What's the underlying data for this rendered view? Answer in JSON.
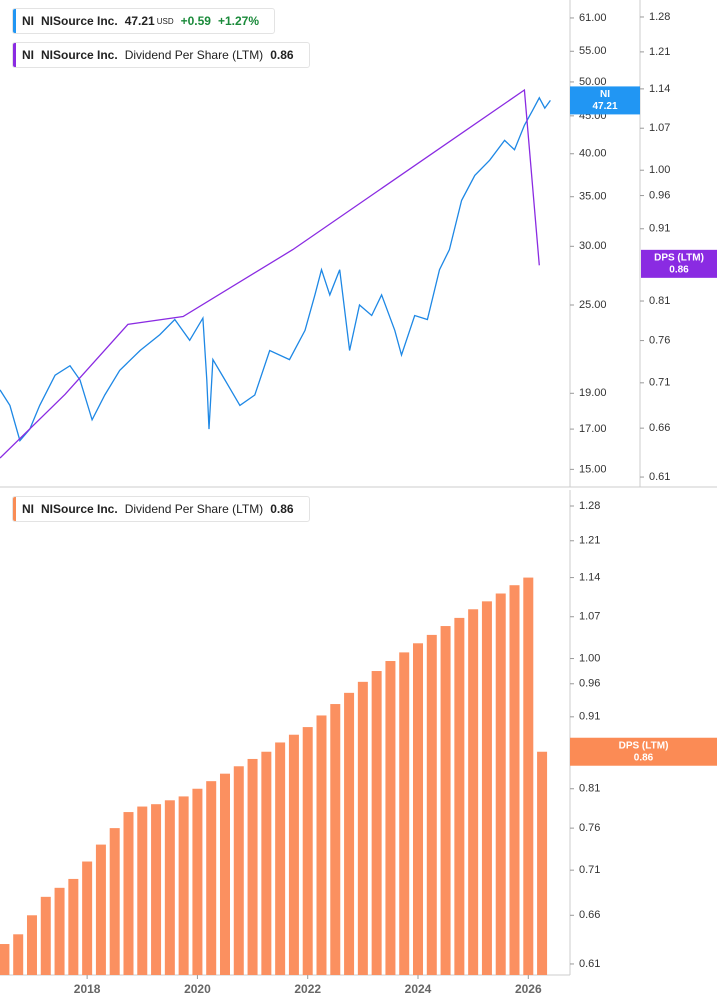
{
  "chart_data": [
    {
      "type": "line",
      "log_scale": true,
      "headers": [
        {
          "symbol": "NI",
          "name": "NISource Inc.",
          "price": 47.21,
          "currency": "USD",
          "change": "+0.59",
          "change_percent": "+1.27%",
          "color": "#2196f3"
        },
        {
          "symbol": "NI",
          "name": "NISource Inc.",
          "metric": "Dividend Per Share (LTM)",
          "value": 0.86,
          "color": "#8a2be2"
        }
      ],
      "xlim": [
        2016.42,
        2026.72
      ],
      "ylim": [
        14.2,
        64.5
      ],
      "yticks": [
        {
          "value": 61,
          "label": "61.00"
        },
        {
          "value": 55,
          "label": "55.00"
        },
        {
          "value": 50,
          "label": "50.00"
        },
        {
          "value": 45,
          "label": "45.00"
        },
        {
          "value": 40,
          "label": "40.00"
        },
        {
          "value": 35,
          "label": "35.00"
        },
        {
          "value": 30,
          "label": "30.00"
        },
        {
          "value": 25,
          "label": "25.00"
        },
        {
          "value": 19,
          "label": "19.00"
        },
        {
          "value": 17,
          "label": "17.00"
        },
        {
          "value": 15,
          "label": "15.00"
        }
      ],
      "y2lim": [
        0.6003,
        1.3155
      ],
      "y2ticks": [
        1.28,
        1.21,
        1.14,
        1.07,
        {
          "value": 1,
          "label": "1.00"
        },
        0.96,
        0.91,
        0.81,
        0.76,
        0.71,
        0.66,
        0.61
      ],
      "series": [
        {
          "name": "NI",
          "color": "#1e88e5",
          "x": [
            2016.42,
            2016.6,
            2016.78,
            2016.96,
            2017.14,
            2017.42,
            2017.69,
            2017.87,
            2018.09,
            2018.32,
            2018.59,
            2018.96,
            2019.32,
            2019.59,
            2019.86,
            2020.1,
            2020.17,
            2020.21,
            2020.28,
            2020.5,
            2020.77,
            2021.04,
            2021.31,
            2021.67,
            2021.95,
            2022.13,
            2022.25,
            2022.4,
            2022.58,
            2022.76,
            2022.94,
            2023.16,
            2023.34,
            2023.58,
            2023.7,
            2023.94,
            2024.17,
            2024.39,
            2024.57,
            2024.79,
            2025.03,
            2025.3,
            2025.57,
            2025.75,
            2025.93,
            2026.08,
            2026.2,
            2026.3,
            2026.4
          ],
          "values": [
            19.2,
            18.3,
            16.4,
            17.0,
            18.3,
            20.1,
            20.7,
            19.8,
            17.5,
            18.9,
            20.4,
            21.7,
            22.8,
            23.9,
            22.4,
            24.0,
            19.8,
            17.0,
            21.1,
            19.8,
            18.3,
            18.9,
            21.7,
            21.1,
            23.1,
            25.8,
            27.9,
            25.8,
            27.9,
            21.7,
            25.0,
            24.2,
            25.8,
            23.1,
            21.4,
            24.2,
            23.9,
            27.9,
            29.7,
            34.6,
            37.4,
            39.2,
            41.7,
            40.5,
            43.7,
            45.8,
            47.6,
            46.1,
            47.21
          ]
        },
        {
          "name": "DPS (LTM)",
          "color": "#8a2be2",
          "axis": "y2",
          "x": [
            2016.42,
            2017.6,
            2018.74,
            2019.74,
            2021.73,
            2025.93,
            2026.2
          ],
          "values": [
            0.629,
            0.697,
            0.78,
            0.79,
            0.88,
            1.138,
            0.858
          ]
        }
      ],
      "badges": [
        {
          "label": "NI",
          "value": 47.21,
          "color": "#2196f3",
          "axis": "y"
        },
        {
          "label": "DPS (LTM)",
          "value": 0.86,
          "color": "#8a2be2",
          "axis": "y2"
        }
      ]
    },
    {
      "type": "bar",
      "log_scale": true,
      "headers": [
        {
          "symbol": "NI",
          "name": "NISource Inc.",
          "metric": "Dividend Per Share (LTM)",
          "value": 0.86,
          "color": "#f98c55"
        }
      ],
      "color": "#fb9060",
      "xlim": [
        2016.42,
        2026.72
      ],
      "xticks": [
        2018,
        2020,
        2022,
        2024,
        2026
      ],
      "ylim": [
        0.5992,
        1.3136
      ],
      "yticks": [
        1.28,
        1.21,
        1.14,
        1.07,
        {
          "value": 1,
          "label": "1.00"
        },
        0.96,
        0.91,
        0.81,
        0.76,
        0.71,
        0.66,
        0.61
      ],
      "x": [
        2016.5,
        2016.75,
        2017,
        2017.25,
        2017.5,
        2017.75,
        2018,
        2018.25,
        2018.5,
        2018.75,
        2019,
        2019.25,
        2019.5,
        2019.75,
        2020,
        2020.25,
        2020.5,
        2020.75,
        2021,
        2021.25,
        2021.5,
        2021.75,
        2022,
        2022.25,
        2022.5,
        2022.75,
        2023,
        2023.25,
        2023.5,
        2023.75,
        2024,
        2024.25,
        2024.5,
        2024.75,
        2025,
        2025.25,
        2025.5,
        2025.75,
        2026,
        2026.25
      ],
      "values": [
        0.63,
        0.64,
        0.66,
        0.68,
        0.69,
        0.7,
        0.72,
        0.74,
        0.76,
        0.78,
        0.787,
        0.79,
        0.795,
        0.8,
        0.81,
        0.82,
        0.83,
        0.84,
        0.85,
        0.86,
        0.873,
        0.884,
        0.895,
        0.912,
        0.929,
        0.946,
        0.963,
        0.98,
        0.996,
        1.01,
        1.025,
        1.039,
        1.054,
        1.068,
        1.083,
        1.097,
        1.111,
        1.126,
        1.14,
        0.86
      ],
      "badges": [
        {
          "label": "DPS (LTM)",
          "value": 0.86,
          "color": "#fb8b55",
          "axis": "y"
        }
      ]
    }
  ]
}
